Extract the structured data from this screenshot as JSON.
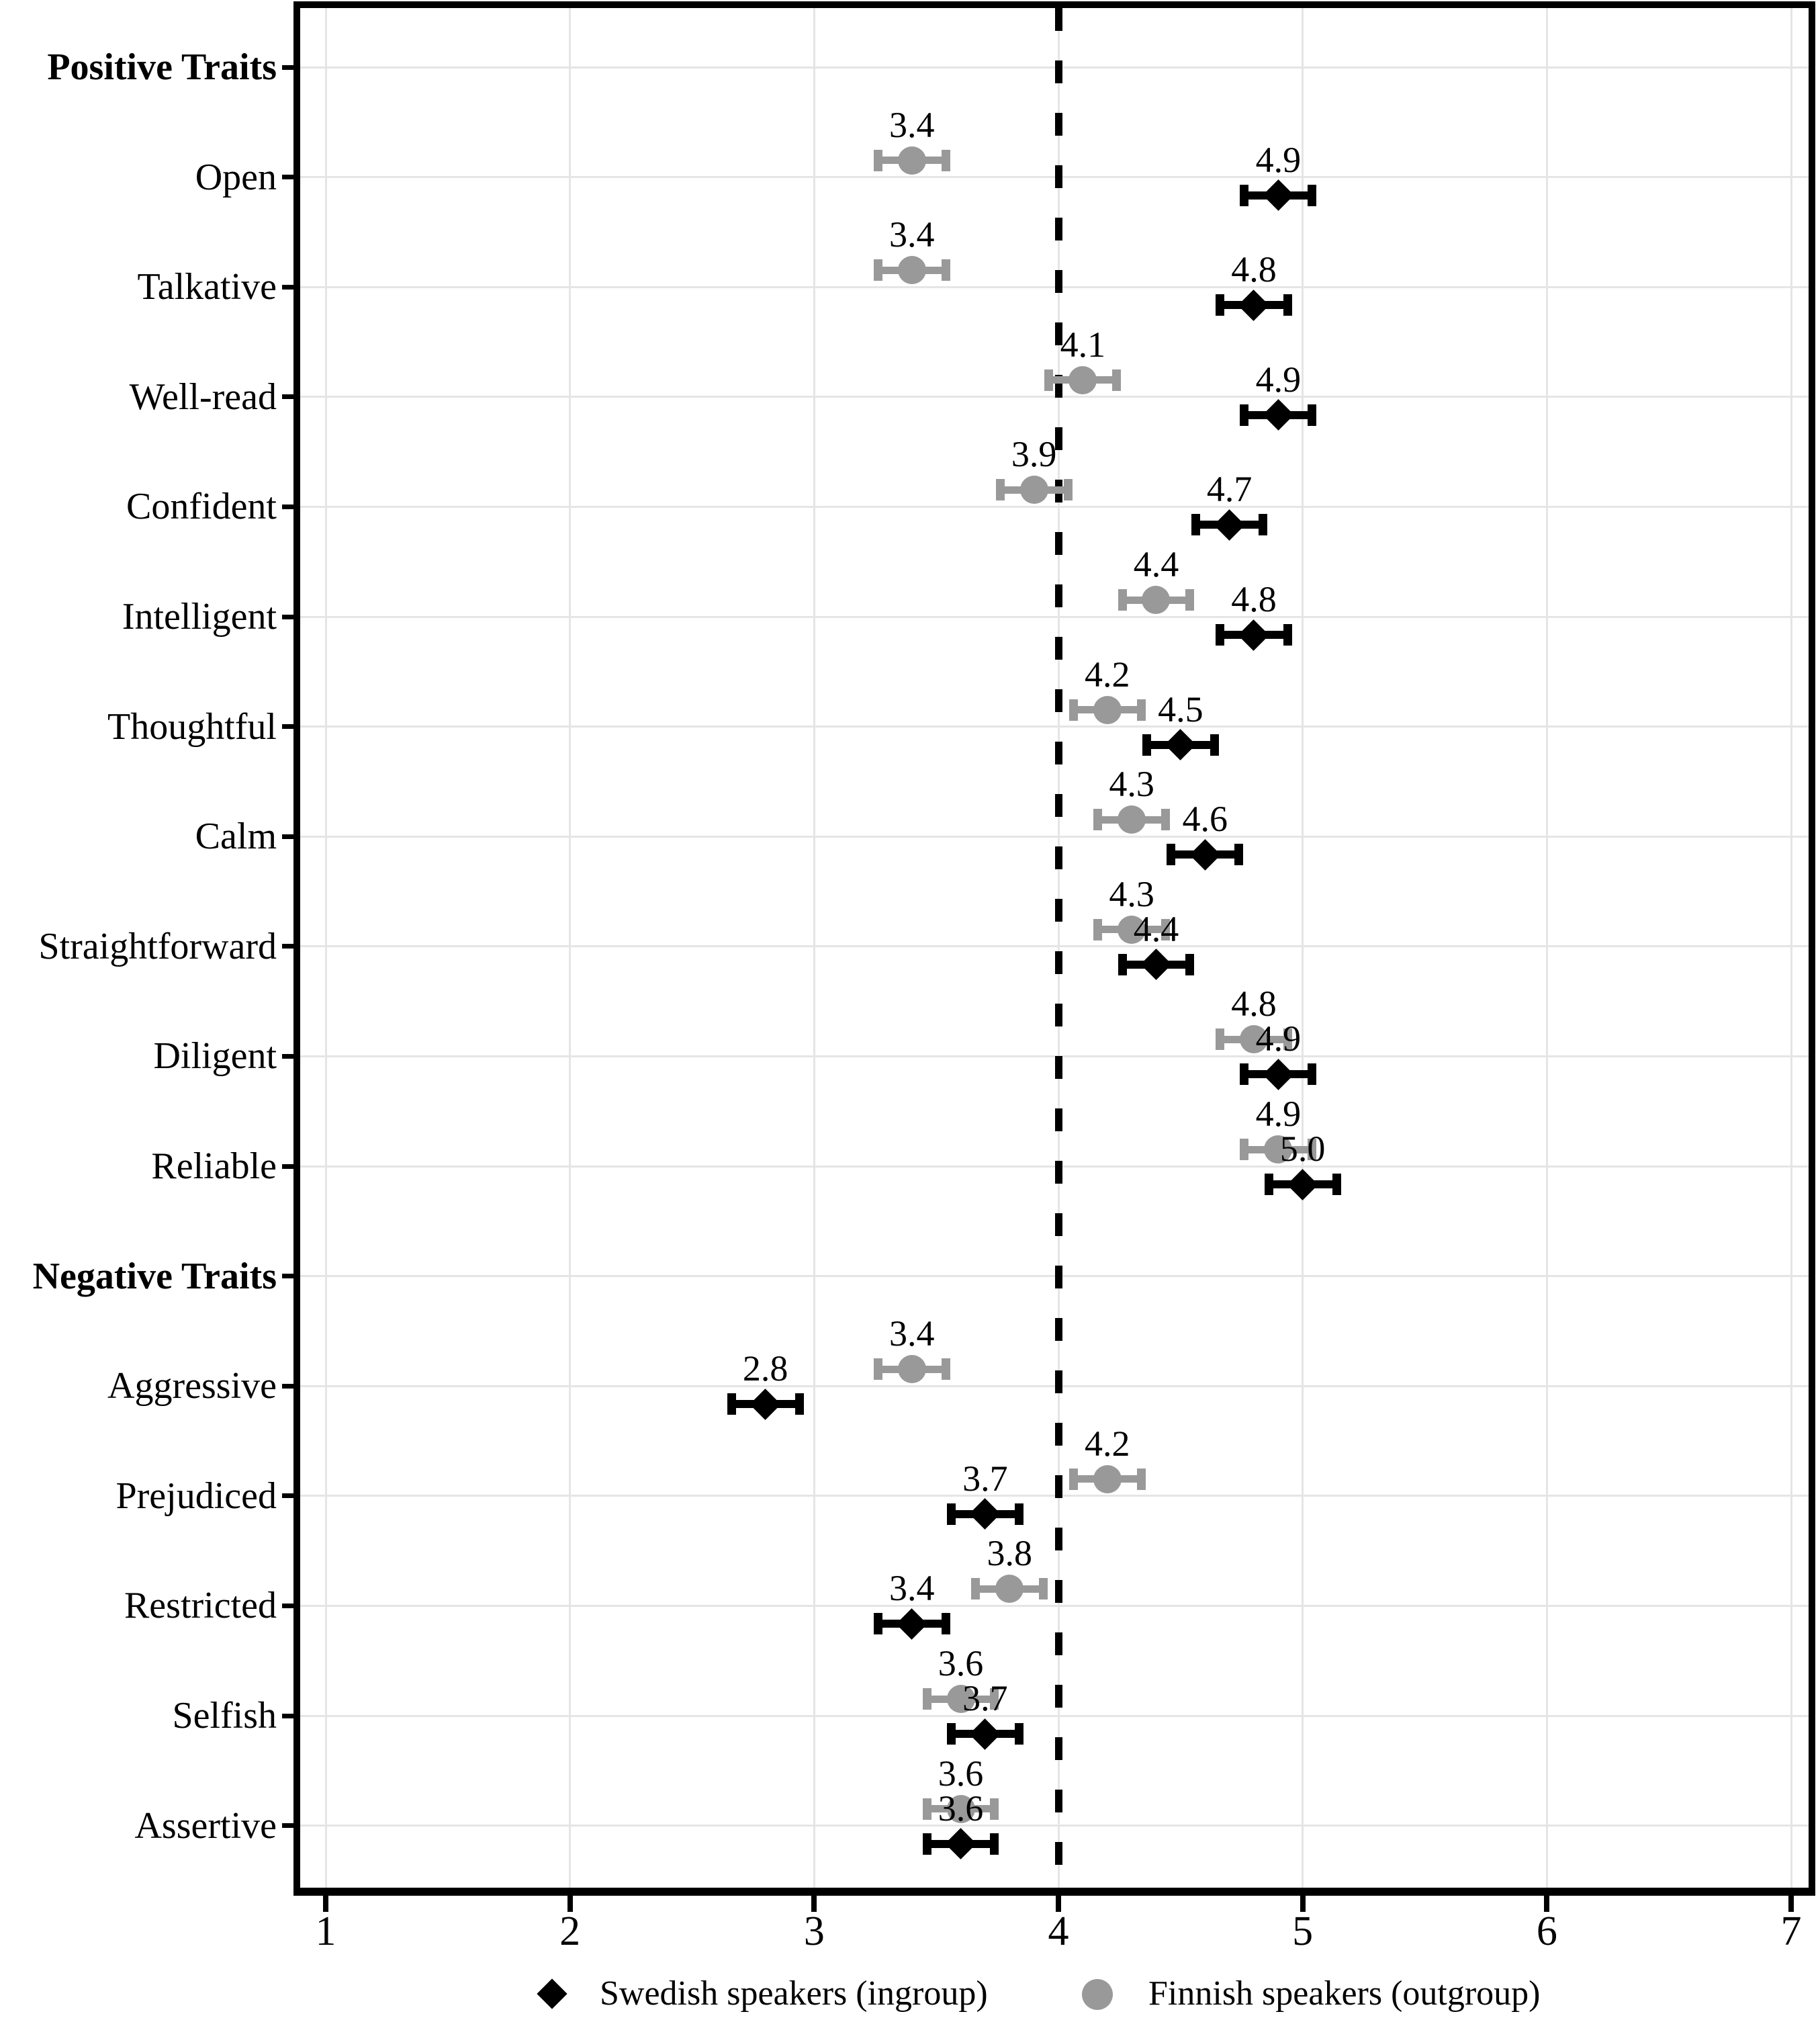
{
  "chart_data": {
    "type": "scatter",
    "subtype": "dot-whisker-forest",
    "title": "",
    "xlabel": "",
    "ylabel": "",
    "x_axis": {
      "min": 1,
      "max": 7,
      "ticks": [
        1,
        2,
        3,
        4,
        5,
        6,
        7
      ],
      "tick_labels": [
        "1",
        "2",
        "3",
        "4",
        "5",
        "6",
        "7"
      ],
      "reference_line": 4,
      "grid": true
    },
    "error_halfwidth": 0.14,
    "series": [
      {
        "key": "ingroup",
        "name": "Swedish speakers (ingroup)",
        "marker": "diamond",
        "color": "#000000"
      },
      {
        "key": "outgroup",
        "name": "Finnish speakers (outgroup)",
        "marker": "circle",
        "color": "#999999"
      }
    ],
    "rows": [
      {
        "label": "Positive Traits",
        "header": true,
        "outgroup": null,
        "ingroup": null,
        "outgroup_text": "",
        "ingroup_text": ""
      },
      {
        "label": "Open",
        "header": false,
        "outgroup": 3.4,
        "ingroup": 4.9,
        "outgroup_text": "3.4",
        "ingroup_text": "4.9"
      },
      {
        "label": "Talkative",
        "header": false,
        "outgroup": 3.4,
        "ingroup": 4.8,
        "outgroup_text": "3.4",
        "ingroup_text": "4.8"
      },
      {
        "label": "Well-read",
        "header": false,
        "outgroup": 4.1,
        "ingroup": 4.9,
        "outgroup_text": "4.1",
        "ingroup_text": "4.9"
      },
      {
        "label": "Confident",
        "header": false,
        "outgroup": 3.9,
        "ingroup": 4.7,
        "outgroup_text": "3.9",
        "ingroup_text": "4.7"
      },
      {
        "label": "Intelligent",
        "header": false,
        "outgroup": 4.4,
        "ingroup": 4.8,
        "outgroup_text": "4.4",
        "ingroup_text": "4.8"
      },
      {
        "label": "Thoughtful",
        "header": false,
        "outgroup": 4.2,
        "ingroup": 4.5,
        "outgroup_text": "4.2",
        "ingroup_text": "4.5"
      },
      {
        "label": "Calm",
        "header": false,
        "outgroup": 4.3,
        "ingroup": 4.6,
        "outgroup_text": "4.3",
        "ingroup_text": "4.6"
      },
      {
        "label": "Straightforward",
        "header": false,
        "outgroup": 4.3,
        "ingroup": 4.4,
        "outgroup_text": "4.3",
        "ingroup_text": "4.4"
      },
      {
        "label": "Diligent",
        "header": false,
        "outgroup": 4.8,
        "ingroup": 4.9,
        "outgroup_text": "4.8",
        "ingroup_text": "4.9"
      },
      {
        "label": "Reliable",
        "header": false,
        "outgroup": 4.9,
        "ingroup": 5.0,
        "outgroup_text": "4.9",
        "ingroup_text": "5.0"
      },
      {
        "label": "Negative Traits",
        "header": true,
        "outgroup": null,
        "ingroup": null,
        "outgroup_text": "",
        "ingroup_text": ""
      },
      {
        "label": "Aggressive",
        "header": false,
        "outgroup": 3.4,
        "ingroup": 2.8,
        "outgroup_text": "3.4",
        "ingroup_text": "2.8"
      },
      {
        "label": "Prejudiced",
        "header": false,
        "outgroup": 4.2,
        "ingroup": 3.7,
        "outgroup_text": "4.2",
        "ingroup_text": "3.7"
      },
      {
        "label": "Restricted",
        "header": false,
        "outgroup": 3.8,
        "ingroup": 3.4,
        "outgroup_text": "3.8",
        "ingroup_text": "3.4"
      },
      {
        "label": "Selfish",
        "header": false,
        "outgroup": 3.6,
        "ingroup": 3.7,
        "outgroup_text": "3.6",
        "ingroup_text": "3.7"
      },
      {
        "label": "Assertive",
        "header": false,
        "outgroup": 3.6,
        "ingroup": 3.6,
        "outgroup_text": "3.6",
        "ingroup_text": "3.6"
      }
    ],
    "legend_position": "bottom"
  },
  "colors": {
    "ingroup": "#000000",
    "outgroup": "#999999",
    "gridline": "#e5e5e5",
    "panel_border": "#000000",
    "background": "#ffffff",
    "text": "#000000"
  }
}
